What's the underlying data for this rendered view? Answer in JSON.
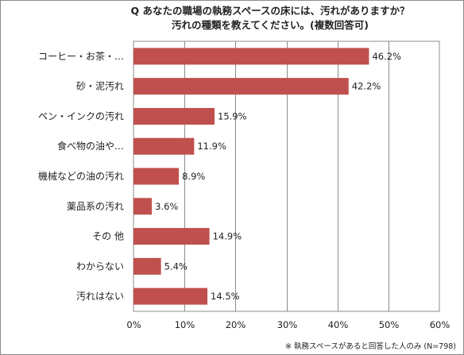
{
  "chart_data": {
    "type": "bar",
    "orientation": "horizontal",
    "title_line1": "Q あなたの職場の執務スペースの床には、汚れがありますか？",
    "title_line2": "汚れの種類を教えてください。(複数回答可)",
    "categories": [
      "コーヒー・お茶・…",
      "砂・泥汚れ",
      "ペン・インクの汚れ",
      "食べ物の油や…",
      "機械などの油の汚れ",
      "薬品系の汚れ",
      "その 他",
      "わからない",
      "汚れはない"
    ],
    "values": [
      46.2,
      42.2,
      15.9,
      11.9,
      8.9,
      3.6,
      14.9,
      5.4,
      14.5
    ],
    "value_labels": [
      "46.2%",
      "42.2%",
      "15.9%",
      "11.9%",
      "8.9%",
      "3.6%",
      "14.9%",
      "5.4%",
      "14.5%"
    ],
    "xlim": [
      0,
      60
    ],
    "xticks": [
      "0%",
      "10%",
      "20%",
      "30%",
      "40%",
      "50%",
      "60%"
    ],
    "grid": true,
    "bar_color": "#c0504d",
    "footnote": "※ 執務スペースがあると回答した人のみ (N=798)"
  }
}
